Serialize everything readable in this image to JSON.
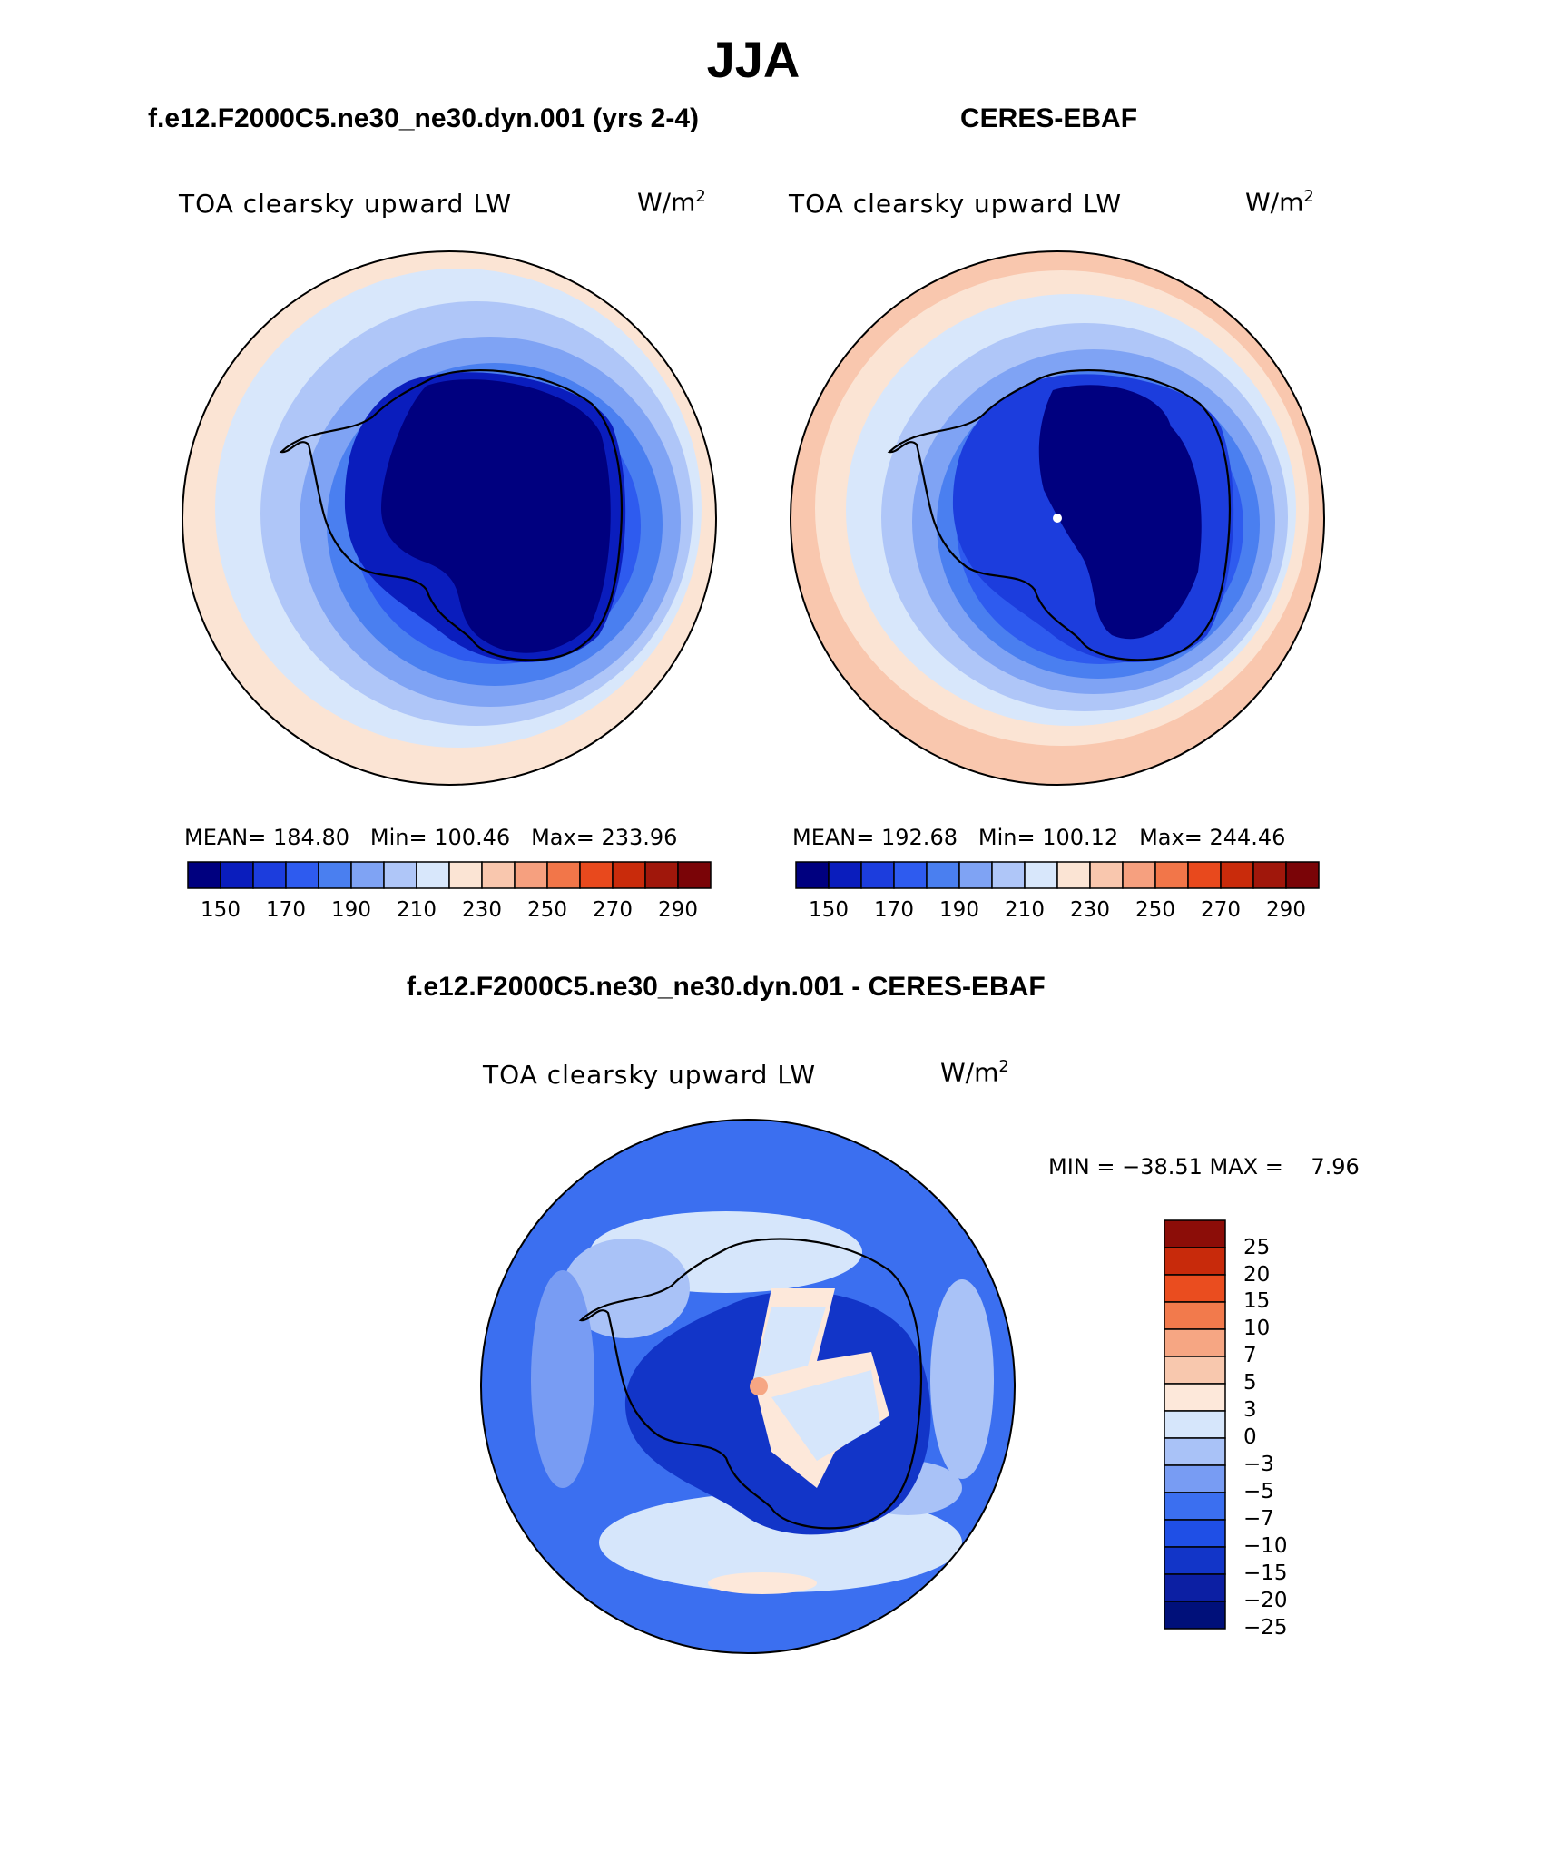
{
  "title": "JJA",
  "colors": {
    "abs_scale": [
      "#00007f",
      "#0a1dbd",
      "#1c3ddd",
      "#2e5bef",
      "#4a7ff0",
      "#7fa3f4",
      "#afc6f8",
      "#d8e7fb",
      "#fbe4d4",
      "#f9c7ae",
      "#f6a07f",
      "#f27649",
      "#e8491d",
      "#c92b0b",
      "#a0170b",
      "#7a0407"
    ],
    "diff_scale": [
      "#00107a",
      "#0c1fa3",
      "#1235c8",
      "#1f4fe6",
      "#3b6ff0",
      "#789cf3",
      "#a9c2f7",
      "#d6e6fb",
      "#fde8da",
      "#f8c8ae",
      "#f6a683",
      "#f27a4c",
      "#ea4d1f",
      "#c82a0b",
      "#8c0d08"
    ],
    "land_outline": "#000000"
  },
  "panels": [
    {
      "id": "model",
      "header": "f.e12.F2000C5.ne30_ne30.dyn.001 (yrs 2-4)",
      "label": "TOA clearsky upward LW",
      "unit_base": "W/m",
      "unit_exp": "2",
      "stats": {
        "mean_label": "MEAN=",
        "mean": "184.80",
        "min_label": "Min=",
        "min": "100.46",
        "max_label": "Max=",
        "max": "233.96"
      },
      "colorbar_ticks": [
        "150",
        "170",
        "190",
        "210",
        "230",
        "250",
        "270",
        "290"
      ]
    },
    {
      "id": "obs",
      "header": "CERES-EBAF",
      "label": "TOA clearsky upward LW",
      "unit_base": "W/m",
      "unit_exp": "2",
      "stats": {
        "mean_label": "MEAN=",
        "mean": "192.68",
        "min_label": "Min=",
        "min": "100.12",
        "max_label": "Max=",
        "max": "244.46"
      },
      "colorbar_ticks": [
        "150",
        "170",
        "190",
        "210",
        "230",
        "250",
        "270",
        "290"
      ]
    }
  ],
  "diff": {
    "header": "f.e12.F2000C5.ne30_ne30.dyn.001 - CERES-EBAF",
    "label": "TOA clearsky upward LW",
    "unit_base": "W/m",
    "unit_exp": "2",
    "minmax": "MIN = −38.51 MAX =    7.96",
    "colorbar_ticks": [
      "25",
      "20",
      "15",
      "10",
      "7",
      "5",
      "3",
      "0",
      "−3",
      "−5",
      "−7",
      "−10",
      "−15",
      "−20",
      "−25"
    ]
  }
}
